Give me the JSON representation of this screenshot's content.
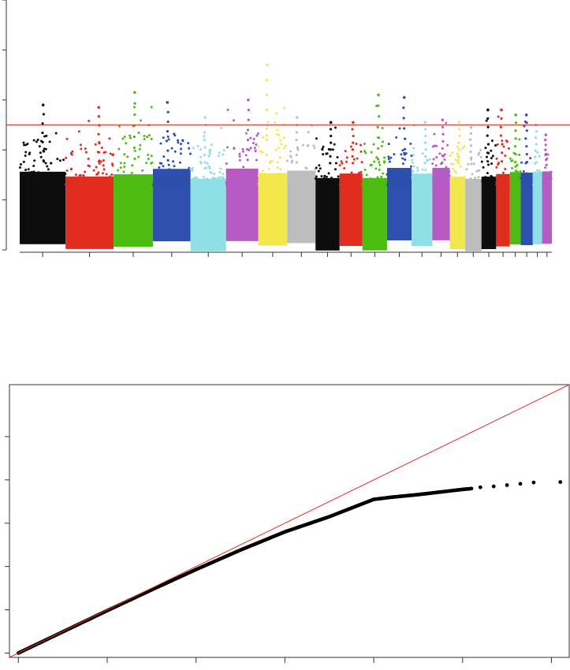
{
  "chart_data": [
    {
      "type": "scatter",
      "subtype": "manhattan",
      "title": "",
      "xlabel": "",
      "ylabel": "",
      "ylim": [
        0,
        10
      ],
      "significance_line": {
        "y": 5,
        "color": "#e02d1f"
      },
      "point_colors": [
        "#0d0d0d",
        "#e02d1f",
        "#4cbc12",
        "#2d4fad",
        "#8ee0e6",
        "#b75bc4",
        "#f2e84b",
        "#bdbdbd"
      ],
      "chromosomes": [
        {
          "index": 1,
          "color": "#0d0d0d",
          "span": [
            0.0,
            0.084
          ],
          "peak": 5.8
        },
        {
          "index": 2,
          "color": "#e02d1f",
          "span": [
            0.084,
            0.172
          ],
          "peak": 5.7
        },
        {
          "index": 3,
          "color": "#4cbc12",
          "span": [
            0.172,
            0.244
          ],
          "peak": 6.3
        },
        {
          "index": 4,
          "color": "#2d4fad",
          "span": [
            0.244,
            0.313
          ],
          "peak": 5.9
        },
        {
          "index": 5,
          "color": "#8ee0e6",
          "span": [
            0.313,
            0.378
          ],
          "peak": 5.3
        },
        {
          "index": 6,
          "color": "#b75bc4",
          "span": [
            0.378,
            0.437
          ],
          "peak": 6.0
        },
        {
          "index": 7,
          "color": "#f2e84b",
          "span": [
            0.437,
            0.49
          ],
          "peak": 7.4
        },
        {
          "index": 8,
          "color": "#bdbdbd",
          "span": [
            0.49,
            0.542
          ],
          "peak": 5.3
        },
        {
          "index": 9,
          "color": "#0d0d0d",
          "span": [
            0.542,
            0.586
          ],
          "peak": 5.1
        },
        {
          "index": 10,
          "color": "#e02d1f",
          "span": [
            0.586,
            0.628
          ],
          "peak": 5.1
        },
        {
          "index": 11,
          "color": "#4cbc12",
          "span": [
            0.628,
            0.673
          ],
          "peak": 6.2
        },
        {
          "index": 12,
          "color": "#2d4fad",
          "span": [
            0.673,
            0.718
          ],
          "peak": 6.1
        },
        {
          "index": 13,
          "color": "#8ee0e6",
          "span": [
            0.718,
            0.756
          ],
          "peak": 5.1
        },
        {
          "index": 14,
          "color": "#b75bc4",
          "span": [
            0.756,
            0.788
          ],
          "peak": 5.2
        },
        {
          "index": 15,
          "color": "#f2e84b",
          "span": [
            0.788,
            0.816
          ],
          "peak": 5.1
        },
        {
          "index": 16,
          "color": "#bdbdbd",
          "span": [
            0.816,
            0.846
          ],
          "peak": 4.9
        },
        {
          "index": 17,
          "color": "#0d0d0d",
          "span": [
            0.846,
            0.873
          ],
          "peak": 5.6
        },
        {
          "index": 18,
          "color": "#e02d1f",
          "span": [
            0.873,
            0.898
          ],
          "peak": 5.6
        },
        {
          "index": 19,
          "color": "#4cbc12",
          "span": [
            0.898,
            0.918
          ],
          "peak": 5.4
        },
        {
          "index": 20,
          "color": "#2d4fad",
          "span": [
            0.918,
            0.94
          ],
          "peak": 5.4
        },
        {
          "index": 21,
          "color": "#8ee0e6",
          "span": [
            0.94,
            0.957
          ],
          "peak": 5.0
        },
        {
          "index": 22,
          "color": "#b75bc4",
          "span": [
            0.957,
            0.975
          ],
          "peak": 4.6
        }
      ],
      "grid": false
    },
    {
      "type": "scatter",
      "subtype": "qq",
      "title": "",
      "xlabel": "",
      "ylabel": "",
      "xlim": [
        -0.1,
        6.2
      ],
      "ylim": [
        -0.1,
        6.2
      ],
      "reference_line": {
        "slope": 1,
        "intercept": 0,
        "color": "#e02d1f"
      },
      "points_color": "#000000",
      "qq_curve": [
        [
          0.0,
          0.0
        ],
        [
          0.5,
          0.49
        ],
        [
          1.0,
          0.98
        ],
        [
          1.5,
          1.46
        ],
        [
          2.0,
          1.93
        ],
        [
          2.5,
          2.38
        ],
        [
          3.0,
          2.8
        ],
        [
          3.5,
          3.15
        ],
        [
          4.0,
          3.55
        ],
        [
          4.2,
          3.6
        ],
        [
          4.5,
          3.66
        ],
        [
          5.0,
          3.78
        ],
        [
          5.5,
          3.88
        ],
        [
          6.0,
          3.95
        ]
      ],
      "top_points": [
        [
          5.2,
          3.83
        ],
        [
          5.35,
          3.85
        ],
        [
          5.5,
          3.88
        ],
        [
          5.65,
          3.91
        ],
        [
          5.8,
          3.94
        ],
        [
          6.1,
          3.95
        ]
      ],
      "grid": false
    }
  ]
}
